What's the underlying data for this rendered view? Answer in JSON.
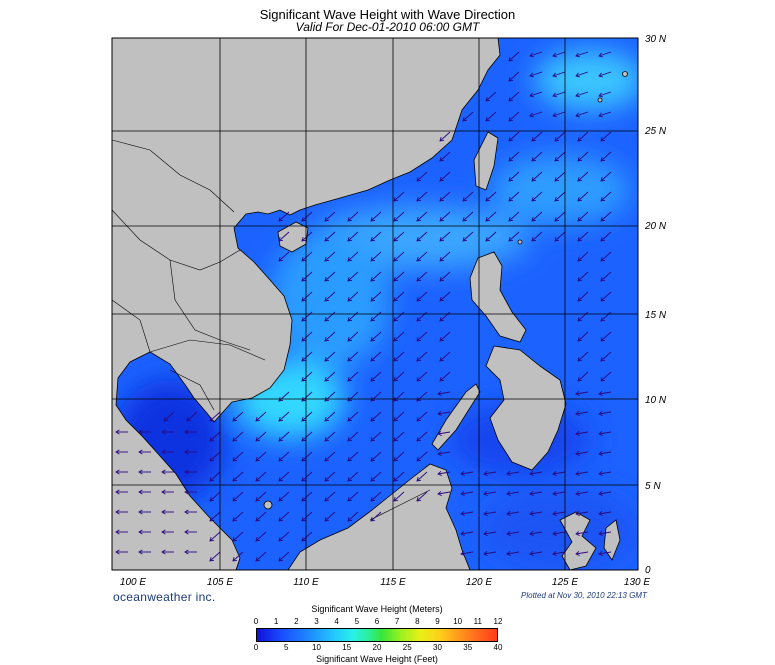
{
  "header": {
    "title": "Significant Wave Height with Wave Direction",
    "subtitle": "Valid For Dec-01-2010 06:00 GMT"
  },
  "map": {
    "lon_labels": [
      "100 E",
      "105 E",
      "110 E",
      "115 E",
      "120 E",
      "125 E",
      "130 E"
    ],
    "lat_labels": [
      "30 N",
      "25 N",
      "20 N",
      "15 N",
      "10 N",
      "5 N",
      "0"
    ],
    "land_color": "#c0c0c0",
    "deep_sea_color": "#1010d8",
    "moderate_sea_color": "#1a6cff",
    "high_sea_color": "#26d4ff",
    "arrow_color": "#2a0a80",
    "predominant_direction": "from northeast"
  },
  "footer": {
    "brand": "oceanweather inc.",
    "plotted": "Plotted at Nov 30, 2010 22:13 GMT"
  },
  "colorbar": {
    "meters_title": "Significant Wave Height (Meters)",
    "meters_ticks": [
      "0",
      "1",
      "2",
      "3",
      "4",
      "5",
      "6",
      "7",
      "8",
      "9",
      "10",
      "11",
      "12"
    ],
    "feet_title": "Significant Wave Height (Feet)",
    "feet_ticks": [
      "0",
      "5",
      "10",
      "15",
      "20",
      "25",
      "30",
      "35",
      "40"
    ]
  }
}
